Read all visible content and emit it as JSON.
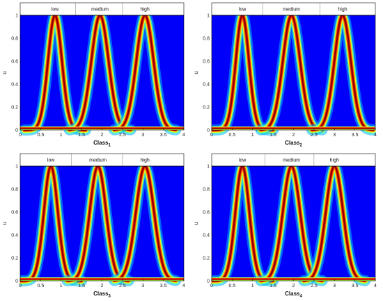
{
  "chart_data": [
    {
      "type": "heatmap",
      "title": "",
      "xlabel": "Class",
      "xlabel_sub": "1",
      "ylabel": "u",
      "xlim": [
        0,
        4
      ],
      "ylim": [
        0,
        1
      ],
      "x_ticks": [
        "0",
        "0.5",
        "1",
        "1.5",
        "2",
        "2.5",
        "3",
        "3.5",
        "4"
      ],
      "y_ticks": [
        "0",
        "0.2",
        "0.4",
        "0.6",
        "0.8",
        "1"
      ],
      "fuzzy_sets": [
        {
          "label": "low",
          "center": 0.85,
          "width": 0.17
        },
        {
          "label": "medium",
          "center": 1.95,
          "width": 0.21
        },
        {
          "label": "high",
          "center": 3.05,
          "width": 0.21
        }
      ],
      "band_dividers": [
        1.35,
        2.5
      ],
      "colormap": "jet",
      "grid": false
    },
    {
      "type": "heatmap",
      "title": "",
      "xlabel": "Class",
      "xlabel_sub": "2",
      "ylabel": "u",
      "xlim": [
        0,
        4
      ],
      "ylim": [
        0,
        1
      ],
      "x_ticks": [
        "0",
        "0.5",
        "1",
        "1.5",
        "2",
        "2.5",
        "3",
        "3.5",
        "4"
      ],
      "y_ticks": [
        "0",
        "0.2",
        "0.4",
        "0.6",
        "0.8",
        "1"
      ],
      "fuzzy_sets": [
        {
          "label": "low",
          "center": 0.75,
          "width": 0.16
        },
        {
          "label": "medium",
          "center": 1.95,
          "width": 0.21
        },
        {
          "label": "high",
          "center": 3.2,
          "width": 0.2
        }
      ],
      "band_dividers": [
        1.25,
        2.65
      ],
      "colormap": "jet",
      "grid": false
    },
    {
      "type": "heatmap",
      "title": "",
      "xlabel": "Class",
      "xlabel_sub": "3",
      "ylabel": "u",
      "xlim": [
        0,
        4
      ],
      "ylim": [
        0,
        1
      ],
      "x_ticks": [
        "0",
        "0.5",
        "1",
        "1.5",
        "2",
        "2.5",
        "3",
        "3.5",
        "4"
      ],
      "y_ticks": [
        "0",
        "0.2",
        "0.4",
        "0.6",
        "0.8",
        "1"
      ],
      "fuzzy_sets": [
        {
          "label": "low",
          "center": 0.75,
          "width": 0.17
        },
        {
          "label": "medium",
          "center": 1.9,
          "width": 0.2
        },
        {
          "label": "high",
          "center": 3.05,
          "width": 0.22
        }
      ],
      "band_dividers": [
        1.25,
        2.5
      ],
      "colormap": "jet",
      "grid": false
    },
    {
      "type": "heatmap",
      "title": "",
      "xlabel": "Class",
      "xlabel_sub": "4",
      "ylabel": "u",
      "xlim": [
        0,
        4
      ],
      "ylim": [
        0,
        1
      ],
      "x_ticks": [
        "0",
        "0.5",
        "1",
        "1.5",
        "2",
        "2.5",
        "3",
        "3.5",
        "4"
      ],
      "y_ticks": [
        "0",
        "0.2",
        "0.4",
        "0.6",
        "0.8",
        "1"
      ],
      "fuzzy_sets": [
        {
          "label": "low",
          "center": 0.75,
          "width": 0.17
        },
        {
          "label": "medium",
          "center": 1.95,
          "width": 0.21
        },
        {
          "label": "high",
          "center": 3.0,
          "width": 0.21
        }
      ],
      "band_dividers": [
        1.3,
        2.5
      ],
      "colormap": "jet",
      "grid": false
    }
  ]
}
